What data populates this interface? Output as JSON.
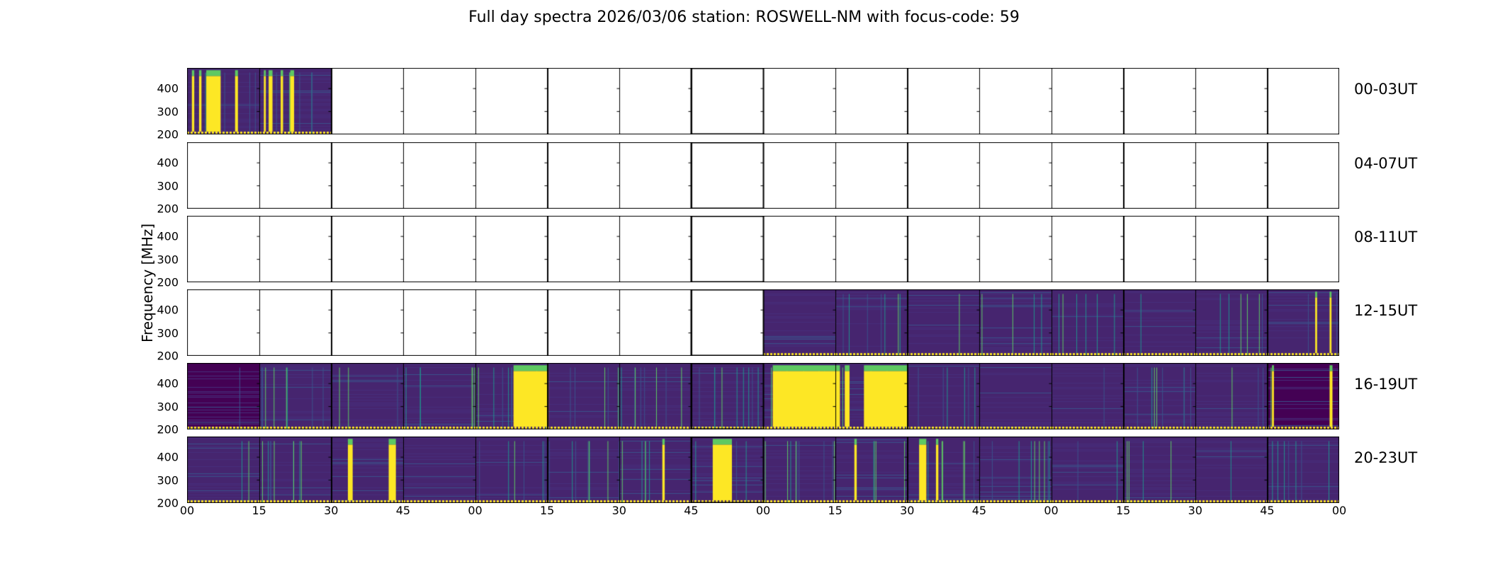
{
  "chart_data": {
    "type": "heatmap",
    "title": "Full day spectra 2026/03/06 station: ROSWELL-NM with focus-code: 59",
    "ylabel": "Frequency [MHz]",
    "ylim": [
      200,
      490
    ],
    "yticks": [
      "200",
      "300",
      "400"
    ],
    "xticks": [
      "00",
      "15",
      "30",
      "45",
      "00",
      "15",
      "30",
      "45",
      "00",
      "15",
      "30",
      "45",
      "00",
      "15",
      "30",
      "45",
      "00"
    ],
    "panel_minutes": 15,
    "colormap": [
      "#440154",
      "#3b528b",
      "#21918c",
      "#5ec962",
      "#fde725"
    ],
    "rows": [
      {
        "label": "00-03UT",
        "data_panels": [
          0,
          1
        ],
        "bursts": [
          [
            4,
            7
          ],
          [
            1,
            1.5
          ],
          [
            2.5,
            3
          ],
          [
            10,
            10.6
          ],
          [
            16,
            16.4
          ],
          [
            17,
            17.8
          ],
          [
            19.5,
            20
          ],
          [
            21.5,
            22.3
          ]
        ]
      },
      {
        "label": "04-07UT",
        "data_panels": [],
        "bursts": []
      },
      {
        "label": "08-11UT",
        "data_panels": [],
        "bursts": []
      },
      {
        "label": "12-15UT",
        "data_panels": [
          8,
          9,
          10,
          11,
          12,
          13,
          14,
          15
        ],
        "bursts": [
          [
            235,
            235.4
          ],
          [
            238,
            238.4
          ]
        ]
      },
      {
        "label": "16-19UT",
        "data_panels": [
          0,
          1,
          2,
          3,
          4,
          5,
          6,
          7,
          8,
          9,
          10,
          11,
          12,
          13,
          14,
          15
        ],
        "bursts": [
          [
            68,
            75
          ],
          [
            75,
            75.3
          ],
          [
            122,
            136
          ],
          [
            137,
            138
          ],
          [
            141,
            150
          ],
          [
            226,
            226.4
          ],
          [
            238,
            238.6
          ]
        ]
      },
      {
        "label": "20-23UT",
        "data_panels": [
          0,
          1,
          2,
          3,
          4,
          5,
          6,
          7,
          8,
          9,
          10,
          11,
          12,
          13,
          14,
          15
        ],
        "bursts": [
          [
            33.5,
            34.5
          ],
          [
            42,
            43.5
          ],
          [
            99,
            99.5
          ],
          [
            109.5,
            113.5
          ],
          [
            139,
            139.5
          ],
          [
            152.5,
            154
          ],
          [
            156,
            156.5
          ]
        ]
      }
    ]
  }
}
